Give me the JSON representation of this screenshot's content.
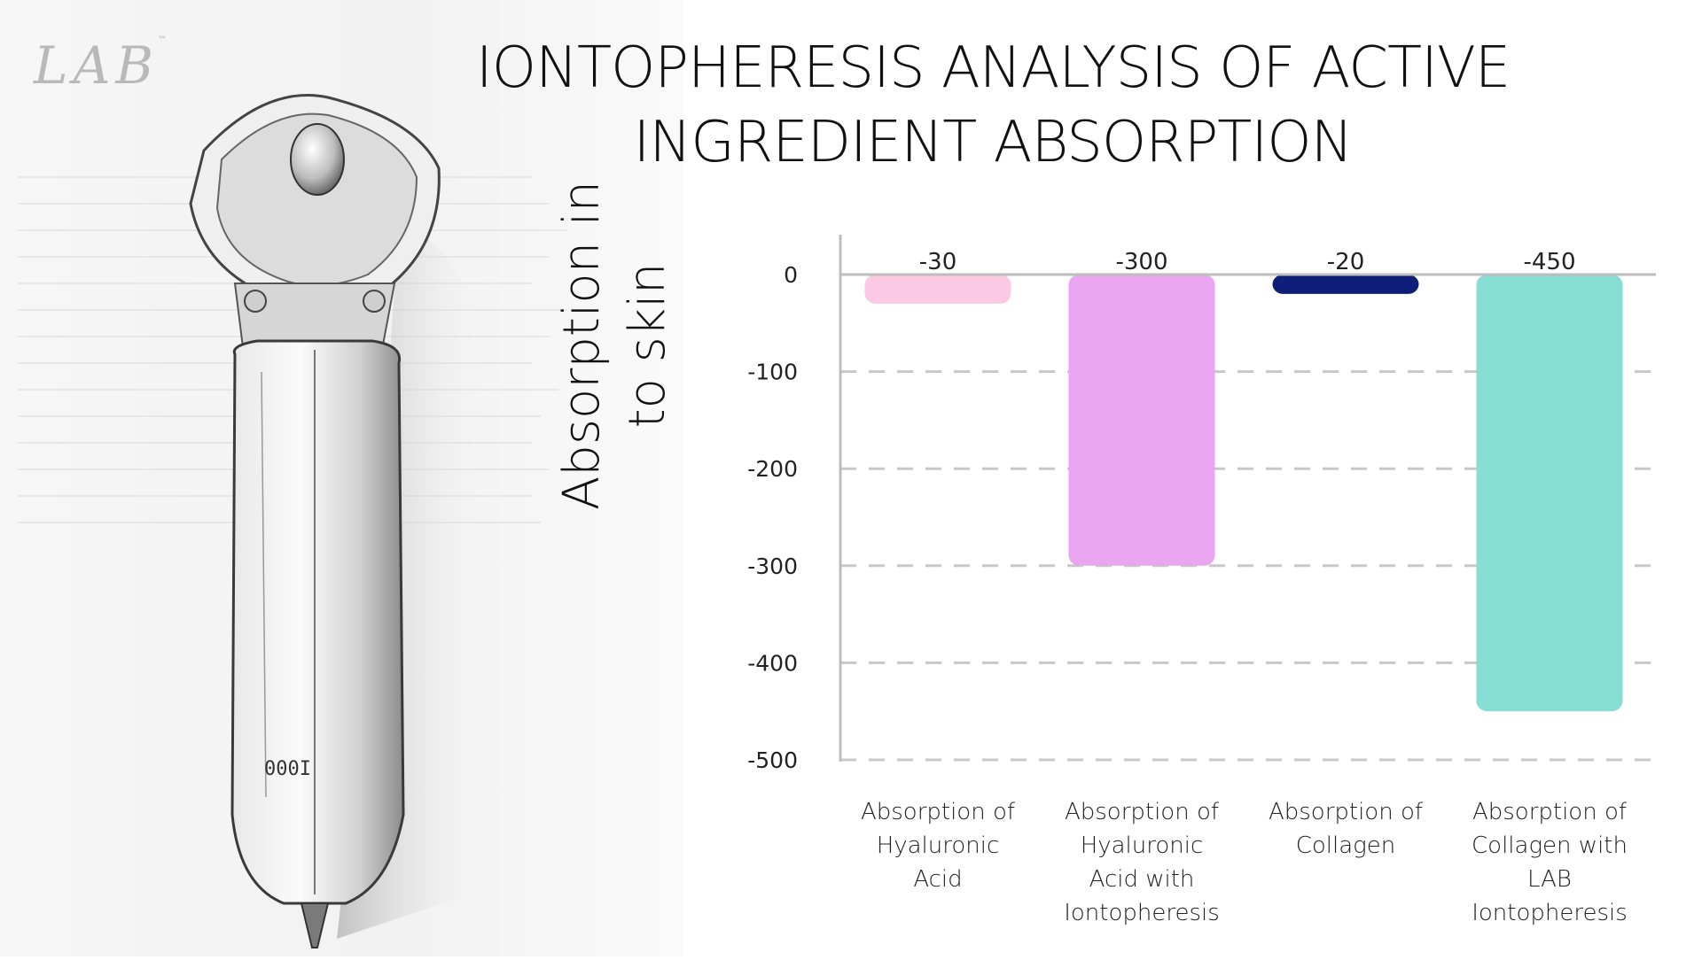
{
  "logo": {
    "text": "LAB",
    "tm": "™"
  },
  "chart_data": {
    "type": "bar",
    "title": "IONTOPHERESIS ANALYSIS OF ACTIVE INGREDIENT ABSORPTION",
    "ylabel": "Absorption in to skin",
    "xlabel": "",
    "categories": [
      "Absorption of Hyaluronic Acid",
      "Absorption of Hyaluronic Acid with Iontopheresis",
      "Absorption of Collagen",
      "Absorption of Collagen with LAB Iontopheresis"
    ],
    "values": [
      -30,
      -300,
      -20,
      -450
    ],
    "data_labels": [
      "-30",
      "-300",
      "-20",
      "-450"
    ],
    "colors": [
      "#fcc9e4",
      "#eaa5f1",
      "#0f1e78",
      "#87ded5"
    ],
    "ylim": [
      -500,
      0
    ],
    "yticks": [
      0,
      -100,
      -200,
      -300,
      -400,
      -500
    ],
    "grid": true
  }
}
